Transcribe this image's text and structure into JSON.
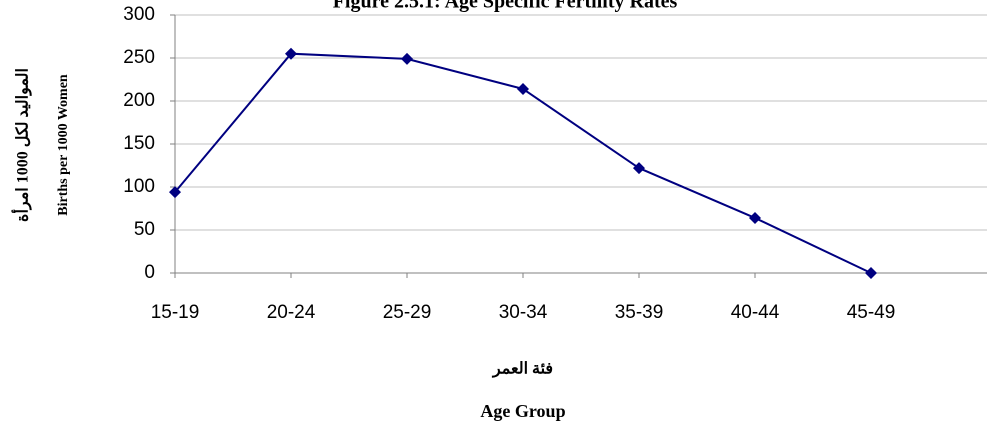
{
  "chart_data": {
    "type": "line",
    "title": "Figure 2.5.1: Age Specific Fertility Rates",
    "y_label_ar": "المواليد لكل 1000 امرأة",
    "y_label": "Births per 1000 Women",
    "x_label_ar": "فئة العمر",
    "x_label": "Age Group",
    "categories": [
      "15-19",
      "20-24",
      "25-29",
      "30-34",
      "35-39",
      "40-44",
      "45-49"
    ],
    "series": [
      {
        "name": "Age Specific Fertility Rates",
        "color": "#000080",
        "values": [
          94,
          255,
          249,
          214,
          122,
          64,
          0
        ]
      }
    ],
    "ylim": [
      0,
      300
    ],
    "yticks": [
      0,
      50,
      100,
      150,
      200,
      250,
      300
    ],
    "grid": true
  }
}
